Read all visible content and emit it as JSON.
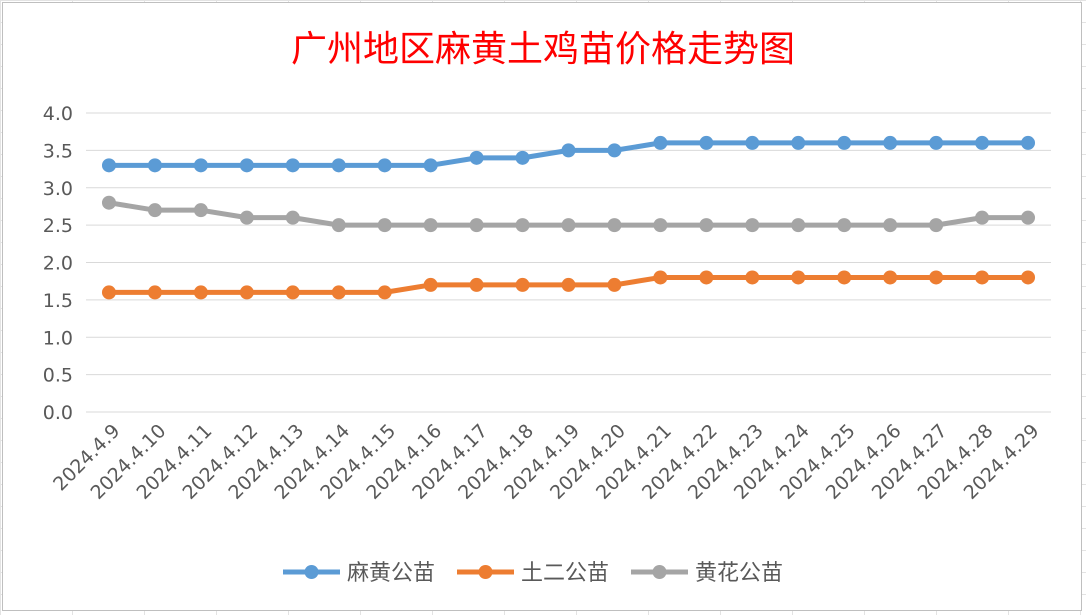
{
  "chart_data": {
    "type": "line",
    "title": "广州地区麻黄土鸡苗价格走势图",
    "title_color": "#ff0000",
    "categories": [
      "2024.4.9",
      "2024.4.10",
      "2024.4.11",
      "2024.4.12",
      "2024.4.13",
      "2024.4.14",
      "2024.4.15",
      "2024.4.16",
      "2024.4.17",
      "2024.4.18",
      "2024.4.19",
      "2024.4.20",
      "2024.4.21",
      "2024.4.22",
      "2024.4.23",
      "2024.4.24",
      "2024.4.25",
      "2024.4.26",
      "2024.4.27",
      "2024.4.28",
      "2024.4.29"
    ],
    "series": [
      {
        "name": "麻黄公苗",
        "color": "#5b9bd5",
        "values": [
          3.3,
          3.3,
          3.3,
          3.3,
          3.3,
          3.3,
          3.3,
          3.3,
          3.4,
          3.4,
          3.5,
          3.5,
          3.6,
          3.6,
          3.6,
          3.6,
          3.6,
          3.6,
          3.6,
          3.6,
          3.6
        ]
      },
      {
        "name": "土二公苗",
        "color": "#ed7d31",
        "values": [
          1.6,
          1.6,
          1.6,
          1.6,
          1.6,
          1.6,
          1.6,
          1.7,
          1.7,
          1.7,
          1.7,
          1.7,
          1.8,
          1.8,
          1.8,
          1.8,
          1.8,
          1.8,
          1.8,
          1.8,
          1.8
        ]
      },
      {
        "name": "黄花公苗",
        "color": "#a5a5a5",
        "values": [
          2.8,
          2.7,
          2.7,
          2.6,
          2.6,
          2.5,
          2.5,
          2.5,
          2.5,
          2.5,
          2.5,
          2.5,
          2.5,
          2.5,
          2.5,
          2.5,
          2.5,
          2.5,
          2.5,
          2.6,
          2.6
        ]
      }
    ],
    "yticks": [
      "0.0",
      "0.5",
      "1.0",
      "1.5",
      "2.0",
      "2.5",
      "3.0",
      "3.5",
      "4.0"
    ],
    "ylim": [
      0,
      4
    ],
    "grid": true,
    "legend_position": "bottom"
  }
}
